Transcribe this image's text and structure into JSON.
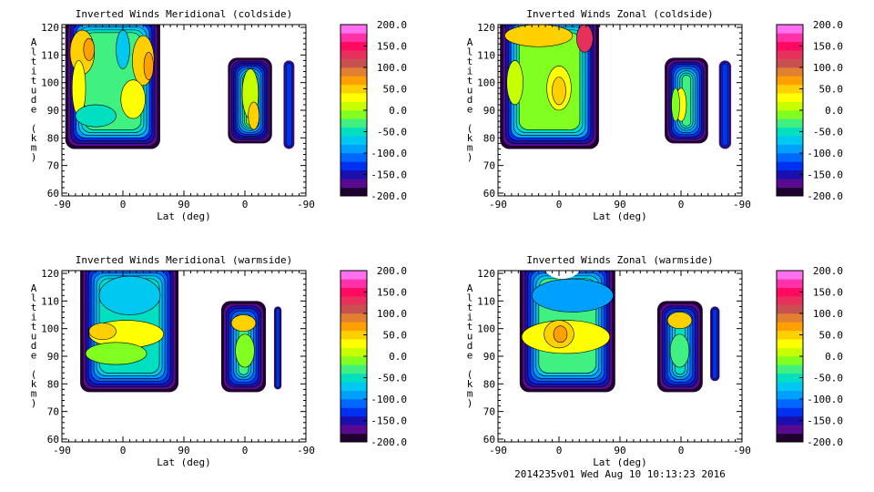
{
  "footer": "2014235v01 Wed Aug 10 10:13:23 2016",
  "colorscale": {
    "min": -200,
    "max": 200,
    "step": 20,
    "colors": [
      "#200030",
      "#5a0a90",
      "#1a10b0",
      "#0030f0",
      "#0068ff",
      "#00a0ff",
      "#00c8f0",
      "#00e0c0",
      "#40f080",
      "#80ff20",
      "#c8ff00",
      "#ffff00",
      "#ffd000",
      "#ffa000",
      "#e08030",
      "#c85050",
      "#e8305c",
      "#ff0a60",
      "#ff30a8",
      "#ff70f0"
    ],
    "tick_labels": [
      "200.0",
      "150.0",
      "100.0",
      "50.0",
      "0.0",
      "-50.0",
      "-100.0",
      "-150.0",
      "-200.0"
    ],
    "tick_values": [
      200,
      150,
      100,
      50,
      0,
      -50,
      -100,
      -150,
      -200
    ]
  },
  "chart_data": [
    {
      "type": "heatmap",
      "title": "Inverted Winds Meridional (coldside)",
      "xlabel": "Lat (deg)",
      "ylabel": "Altitude (km)",
      "xtick_labels": [
        "-90",
        "0",
        "90",
        "0",
        "-90"
      ],
      "ytick_labels": [
        "120",
        "110",
        "100",
        "90",
        "80",
        "70",
        "60"
      ],
      "ylim": [
        59,
        121
      ],
      "blobs": [
        {
          "x": [
            5,
            145
          ],
          "alt": [
            76,
            125
          ],
          "levels": [
            -195,
            -175,
            -150,
            -125,
            -100,
            -80,
            -60
          ],
          "fill": -30
        },
        {
          "x": [
            245,
            310
          ],
          "alt": [
            78,
            109
          ],
          "levels": [
            -190,
            -175,
            -160,
            -145,
            -130,
            -110,
            -90,
            -70,
            -50,
            -30
          ],
          "fill": -10
        },
        {
          "x": [
            327,
            343
          ],
          "alt": [
            76,
            108
          ],
          "levels": [
            -170,
            -140
          ],
          "fill": -130
        }
      ],
      "spots": [
        {
          "x": 30,
          "alt": 111,
          "rx": 18,
          "ry": 8,
          "v": 50
        },
        {
          "x": 40,
          "alt": 112,
          "rx": 8,
          "ry": 4,
          "v": 70
        },
        {
          "x": 120,
          "alt": 108,
          "rx": 16,
          "ry": 9,
          "v": 50
        },
        {
          "x": 128,
          "alt": 106,
          "rx": 7,
          "ry": 5,
          "v": 70
        },
        {
          "x": 90,
          "alt": 112,
          "rx": 10,
          "ry": 7,
          "v": -70
        },
        {
          "x": 25,
          "alt": 98,
          "rx": 10,
          "ry": 10,
          "v": 30
        },
        {
          "x": 105,
          "alt": 94,
          "rx": 18,
          "ry": 7,
          "v": 20
        },
        {
          "x": 50,
          "alt": 88,
          "rx": 30,
          "ry": 4,
          "v": -50
        },
        {
          "x": 278,
          "alt": 96,
          "rx": 12,
          "ry": 9,
          "v": 0
        },
        {
          "x": 283,
          "alt": 88,
          "rx": 8,
          "ry": 5,
          "v": 40
        }
      ]
    },
    {
      "type": "heatmap",
      "title": "Inverted Winds Zonal (coldside)",
      "xlabel": "Lat (deg)",
      "ylabel": "Altitude (km)",
      "xtick_labels": [
        "-90",
        "0",
        "90",
        "0",
        "-90"
      ],
      "ytick_labels": [
        "120",
        "110",
        "100",
        "90",
        "80",
        "70",
        "60"
      ],
      "ylim": [
        59,
        121
      ],
      "blobs": [
        {
          "x": 3,
          "x2": 149,
          "alt": [
            76,
            125
          ],
          "levels": [
            -195,
            -175,
            -150,
            -125,
            -100,
            -80,
            -60
          ],
          "fill": -10
        },
        {
          "x": [
            246,
            310
          ],
          "alt": [
            78,
            109
          ],
          "levels": [
            -190,
            -170,
            -150,
            -130,
            -110,
            -90,
            -70,
            -50
          ],
          "fill": -30
        },
        {
          "x": [
            326,
            344
          ],
          "alt": [
            76,
            108
          ],
          "levels": [
            -170,
            -140
          ],
          "fill": -130
        }
      ],
      "spots": [
        {
          "x": 60,
          "alt": 117,
          "rx": 50,
          "ry": 4,
          "v": 50
        },
        {
          "x": 128,
          "alt": 116,
          "rx": 12,
          "ry": 5,
          "v": 130
        },
        {
          "x": 90,
          "alt": 98,
          "rx": 18,
          "ry": 8,
          "v": 20
        },
        {
          "x": 90,
          "alt": 97,
          "rx": 10,
          "ry": 5,
          "v": 50
        },
        {
          "x": 25,
          "alt": 100,
          "rx": 12,
          "ry": 8,
          "v": 10
        },
        {
          "x": 270,
          "alt": 92,
          "rx": 8,
          "ry": 6,
          "v": 30
        },
        {
          "x": 262,
          "alt": 92,
          "rx": 6,
          "ry": 6,
          "v": -10
        }
      ]
    },
    {
      "type": "heatmap",
      "title": "Inverted Winds Meridional (warmside)",
      "xlabel": "Lat (deg)",
      "ylabel": "Altitude (km)",
      "xtick_labels": [
        "-90",
        "0",
        "90",
        "0",
        "-90"
      ],
      "ytick_labels": [
        "120",
        "110",
        "100",
        "90",
        "80",
        "70",
        "60"
      ],
      "ylim": [
        59,
        121
      ],
      "blobs": [
        {
          "x": [
            27,
            172
          ],
          "alt": [
            77,
            125
          ],
          "levels": [
            -195,
            -175,
            -150,
            -130,
            -110,
            -90,
            -70
          ],
          "fill": -50
        },
        {
          "x": [
            235,
            301
          ],
          "alt": [
            77,
            110
          ],
          "levels": [
            -190,
            -170,
            -150,
            -130,
            -110,
            -90,
            -70
          ],
          "fill": -30
        },
        {
          "x": [
            313,
            324
          ],
          "alt": [
            78,
            108
          ],
          "levels": [
            -170,
            -140
          ],
          "fill": -130
        }
      ],
      "spots": [
        {
          "x": 100,
          "alt": 112,
          "rx": 45,
          "ry": 7,
          "v": -80
        },
        {
          "x": 95,
          "alt": 98,
          "rx": 55,
          "ry": 5,
          "v": 20
        },
        {
          "x": 60,
          "alt": 99,
          "rx": 20,
          "ry": 3,
          "v": 40
        },
        {
          "x": 80,
          "alt": 91,
          "rx": 45,
          "ry": 4,
          "v": -20
        },
        {
          "x": 268,
          "alt": 102,
          "rx": 18,
          "ry": 3,
          "v": 40
        },
        {
          "x": 270,
          "alt": 92,
          "rx": 14,
          "ry": 6,
          "v": -10
        }
      ]
    },
    {
      "type": "heatmap",
      "title": "Inverted Winds Zonal (warmside)",
      "xlabel": "Lat (deg)",
      "ylabel": "Altitude (km)",
      "xtick_labels": [
        "-90",
        "0",
        "90",
        "0",
        "-90"
      ],
      "ytick_labels": [
        "120",
        "110",
        "100",
        "90",
        "80",
        "70",
        "60"
      ],
      "ylim": [
        59,
        121
      ],
      "blobs": [
        {
          "x": [
            32,
            173
          ],
          "alt": [
            77,
            125
          ],
          "levels": [
            -195,
            -175,
            -155,
            -135,
            -115,
            -95,
            -75
          ],
          "fill": -40
        },
        {
          "x": [
            235,
            302
          ],
          "alt": [
            77,
            110
          ],
          "levels": [
            -190,
            -170,
            -150,
            -130,
            -110,
            -90,
            -70
          ],
          "fill": -50
        },
        {
          "x": [
            313,
            327
          ],
          "alt": [
            81,
            108
          ],
          "levels": [
            -170,
            -140
          ],
          "fill": -130
        }
      ],
      "spots": [
        {
          "x": 100,
          "alt": 97,
          "rx": 65,
          "ry": 6,
          "v": 20
        },
        {
          "x": 90,
          "alt": 98,
          "rx": 22,
          "ry": 5,
          "v": 50
        },
        {
          "x": 92,
          "alt": 98,
          "rx": 10,
          "ry": 3,
          "v": 70
        },
        {
          "x": 110,
          "alt": 112,
          "rx": 60,
          "ry": 6,
          "v": -90
        },
        {
          "x": 95,
          "alt": 123,
          "rx": 28,
          "ry": 5,
          "v": 999
        },
        {
          "x": 268,
          "alt": 103,
          "rx": 18,
          "ry": 3,
          "v": 40
        },
        {
          "x": 268,
          "alt": 92,
          "rx": 14,
          "ry": 6,
          "v": -40
        }
      ]
    }
  ]
}
